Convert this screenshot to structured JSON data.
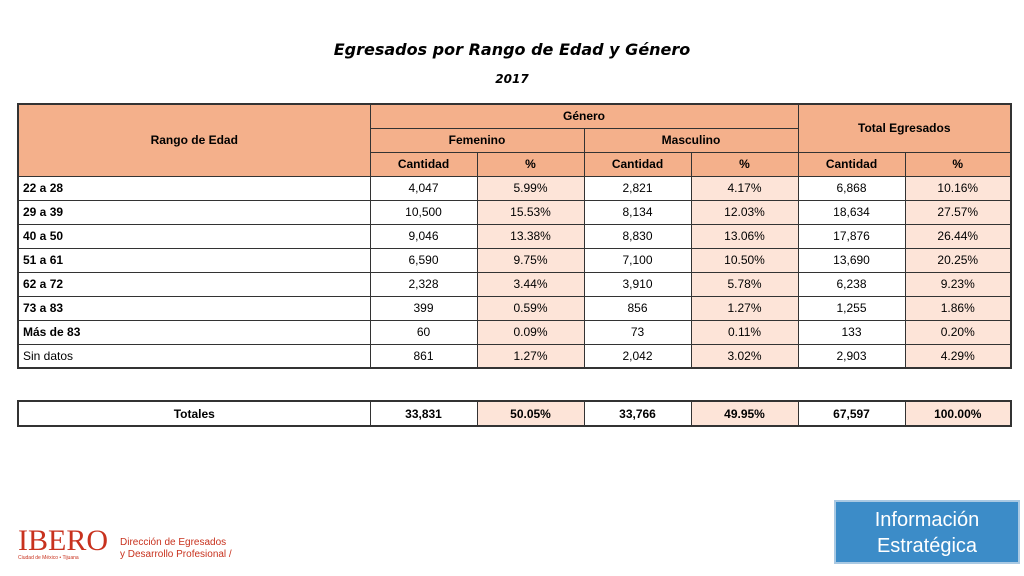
{
  "title": "Egresados por Rango de Edad y Género",
  "year": "2017",
  "headers": {
    "rango": "Rango de Edad",
    "genero": "Género",
    "femenino": "Femenino",
    "masculino": "Masculino",
    "total": "Total Egresados",
    "cantidad": "Cantidad",
    "pct": "%"
  },
  "rows": [
    {
      "label": "22 a 28",
      "f": "4,047",
      "fp": "5.99%",
      "m": "2,821",
      "mp": "4.17%",
      "t": "6,868",
      "tp": "10.16%",
      "bold": true
    },
    {
      "label": "29 a 39",
      "f": "10,500",
      "fp": "15.53%",
      "m": "8,134",
      "mp": "12.03%",
      "t": "18,634",
      "tp": "27.57%",
      "bold": true
    },
    {
      "label": "40 a 50",
      "f": "9,046",
      "fp": "13.38%",
      "m": "8,830",
      "mp": "13.06%",
      "t": "17,876",
      "tp": "26.44%",
      "bold": true
    },
    {
      "label": "51 a 61",
      "f": "6,590",
      "fp": "9.75%",
      "m": "7,100",
      "mp": "10.50%",
      "t": "13,690",
      "tp": "20.25%",
      "bold": true
    },
    {
      "label": "62 a 72",
      "f": "2,328",
      "fp": "3.44%",
      "m": "3,910",
      "mp": "5.78%",
      "t": "6,238",
      "tp": "9.23%",
      "bold": true
    },
    {
      "label": "73 a 83",
      "f": "399",
      "fp": "0.59%",
      "m": "856",
      "mp": "1.27%",
      "t": "1,255",
      "tp": "1.86%",
      "bold": true
    },
    {
      "label": "Más de 83",
      "f": "60",
      "fp": "0.09%",
      "m": "73",
      "mp": "0.11%",
      "t": "133",
      "tp": "0.20%",
      "bold": true
    },
    {
      "label": "Sin datos",
      "f": "861",
      "fp": "1.27%",
      "m": "2,042",
      "mp": "3.02%",
      "t": "2,903",
      "tp": "4.29%",
      "bold": false
    }
  ],
  "totals": {
    "label": "Totales",
    "f": "33,831",
    "fp": "50.05%",
    "m": "33,766",
    "mp": "49.95%",
    "t": "67,597",
    "tp": "100.00%"
  },
  "footer": {
    "logo": "IBERO",
    "logo_sub": "Ciudad de México • Tijuana",
    "dept_line1": "Dirección de Egresados",
    "dept_line2": "y Desarrollo Profesional /",
    "info_line1": "Información",
    "info_line2": "Estratégica"
  },
  "colors": {
    "header": "#f4b08b",
    "pct_cell": "#fde4d8",
    "brand": "#c8321e",
    "info_box": "#3c8cc8"
  }
}
